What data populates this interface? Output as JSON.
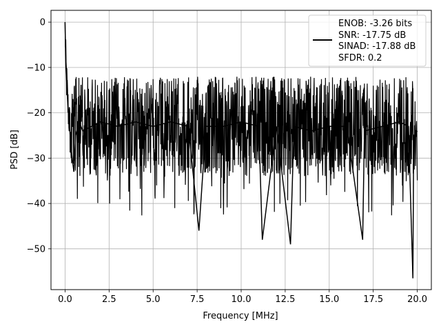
{
  "chart_data": {
    "type": "line",
    "xlabel": "Frequency [MHz]",
    "ylabel": "PSD [dB]",
    "xlim": [
      -0.8,
      20.8
    ],
    "ylim": [
      -59.0,
      2.6
    ],
    "xticks": [
      0.0,
      2.5,
      5.0,
      7.5,
      10.0,
      12.5,
      15.0,
      17.5,
      20.0
    ],
    "xtick_labels": [
      "0.0",
      "2.5",
      "5.0",
      "7.5",
      "10.0",
      "12.5",
      "15.0",
      "17.5",
      "20.0"
    ],
    "yticks": [
      0,
      -10,
      -20,
      -30,
      -40,
      -50
    ],
    "ytick_labels": [
      "0",
      "−10",
      "−20",
      "−30",
      "−40",
      "−50"
    ],
    "grid": true,
    "legend": {
      "placement": "top-right",
      "entries": [
        "ENOB: -3.26 bits",
        "SNR: -17.75 dB",
        "SINAD: -17.88 dB",
        "SFDR: 0.2"
      ]
    },
    "series": [
      {
        "color": "#000000",
        "x": [
          0.0,
          0.02,
          0.05,
          0.1,
          0.15,
          0.2,
          0.25,
          0.3,
          0.4,
          0.5,
          0.6,
          0.8,
          1.0,
          1.5,
          2.0,
          3.0,
          4.0,
          5.0,
          6.0,
          7.0,
          7.6,
          8.0,
          9.0,
          10.0,
          11.0,
          11.2,
          12.0,
          12.8,
          13.0,
          14.0,
          15.0,
          16.0,
          16.9,
          17.0,
          18.0,
          19.0,
          19.5,
          19.75,
          19.8,
          20.0
        ],
        "y": [
          0,
          -5,
          -10,
          -14,
          -18,
          -20,
          -22,
          -26,
          -30,
          -33,
          -25,
          -22,
          -24,
          -23,
          -22,
          -23,
          -22,
          -23,
          -22,
          -23,
          -46,
          -23,
          -23,
          -22,
          -23,
          -48,
          -23,
          -49,
          -23,
          -24,
          -23,
          -23,
          -48,
          -24,
          -23,
          -22,
          -23,
          -56.5,
          -25,
          -24
        ]
      }
    ]
  }
}
